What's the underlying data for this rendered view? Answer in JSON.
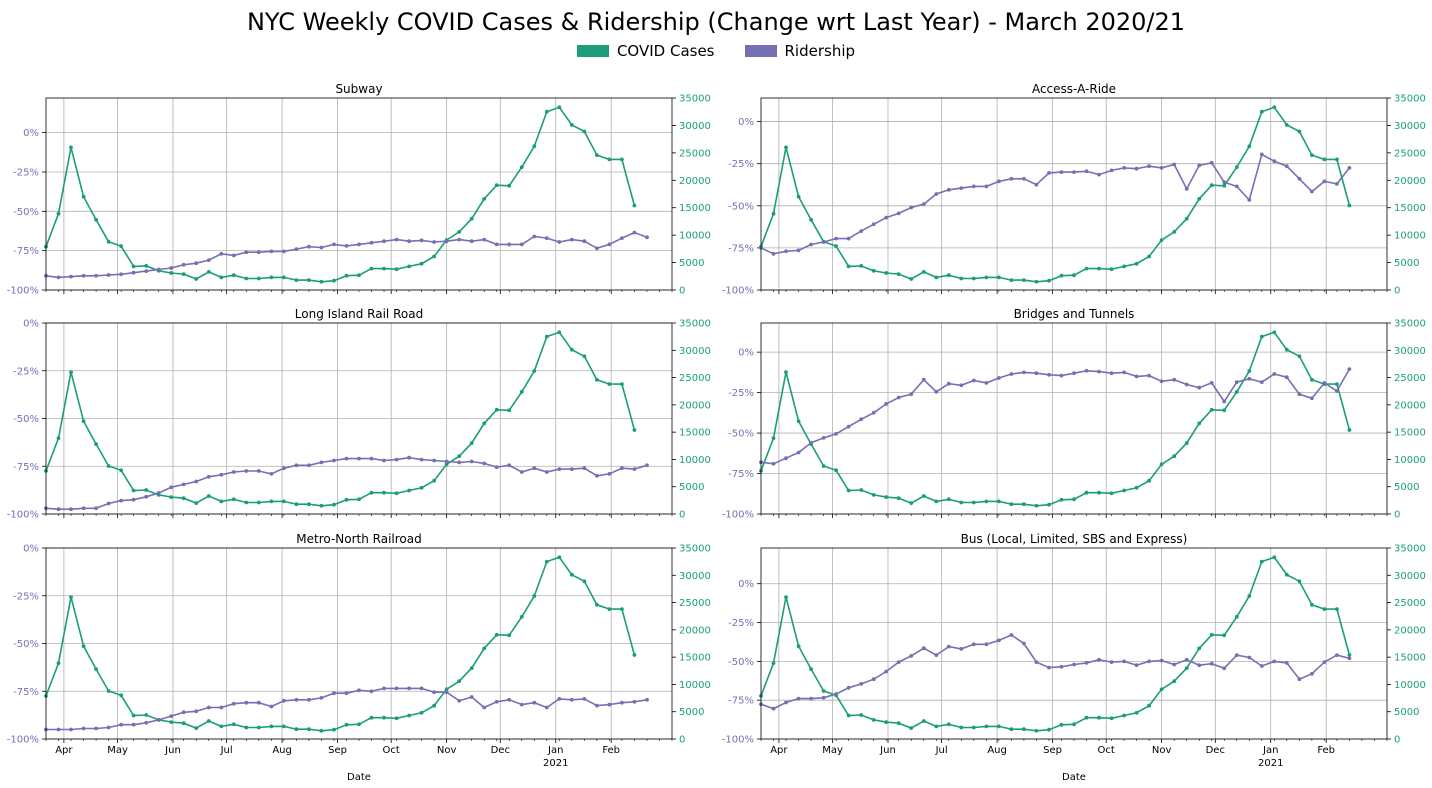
{
  "title": "NYC Weekly COVID Cases & Ridership (Change wrt Last Year) - March 2020/21",
  "legend": [
    {
      "label": "COVID Cases",
      "color": "#1b9e77"
    },
    {
      "label": "Ridership",
      "color": "#7570b3"
    }
  ],
  "colors": {
    "cases": "#1b9e77",
    "ridership": "#7570b3",
    "grid": "#b0b0b0"
  },
  "x_labels": {
    "months": [
      "Apr",
      "May",
      "Jun",
      "Jul",
      "Aug",
      "Sep",
      "Oct",
      "Nov",
      "Dec",
      "Jan",
      "Feb"
    ],
    "year": "2021",
    "xlabel": "Date"
  },
  "chart_data": [
    {
      "type": "line",
      "title": "Subway",
      "x_start": "2020-03-22",
      "x_step_days": 7,
      "x_range": [
        "2020-03-22",
        "2021-03-07"
      ],
      "y_left": {
        "ylim": [
          -100,
          22
        ],
        "ticks": [
          0,
          -25,
          -50,
          -75,
          -100
        ],
        "tick_labels": [
          "0%",
          "-25%",
          "-50%",
          "-75%",
          "-100%"
        ]
      },
      "y_right": {
        "ylim": [
          0,
          35000
        ],
        "ticks": [
          0,
          5000,
          10000,
          15000,
          20000,
          25000,
          30000,
          35000
        ]
      },
      "series": [
        {
          "name": "COVID Cases",
          "axis": "right",
          "values": [
            7900,
            13900,
            26000,
            17000,
            12800,
            8800,
            8000,
            4300,
            4400,
            3500,
            3100,
            2900,
            2000,
            3300,
            2300,
            2700,
            2100,
            2100,
            2300,
            2300,
            1800,
            1800,
            1500,
            1700,
            2600,
            2700,
            3900,
            3900,
            3800,
            4300,
            4800,
            6100,
            9100,
            10600,
            13000,
            16600,
            19100,
            19000,
            22400,
            26200,
            32500,
            33300,
            30100,
            28900,
            24600,
            23800,
            23800,
            15400
          ]
        },
        {
          "name": "Ridership",
          "axis": "left",
          "values": [
            -91,
            -92,
            -91.5,
            -91,
            -91,
            -90.5,
            -90,
            -89,
            -88,
            -87,
            -86,
            -84,
            -83,
            -81,
            -77,
            -78,
            -76,
            -76,
            -75.5,
            -75.5,
            -74,
            -72.5,
            -73,
            -71,
            -72,
            -71,
            -70,
            -69,
            -68,
            -69,
            -68.5,
            -69.5,
            -69,
            -68,
            -69,
            -68,
            -71,
            -71,
            -71,
            -66,
            -67,
            -69.5,
            -68,
            -69,
            -73.5,
            -71,
            -67,
            -63.5,
            -66.5
          ]
        }
      ]
    },
    {
      "type": "line",
      "title": "Access-A-Ride",
      "x_start": "2020-03-22",
      "x_step_days": 7,
      "x_range": [
        "2020-03-22",
        "2021-03-07"
      ],
      "y_left": {
        "ylim": [
          -100,
          14
        ],
        "ticks": [
          0,
          -25,
          -50,
          -75,
          -100
        ],
        "tick_labels": [
          "0%",
          "-25%",
          "-50%",
          "-75%",
          "-100%"
        ]
      },
      "y_right": {
        "ylim": [
          0,
          35000
        ],
        "ticks": [
          0,
          5000,
          10000,
          15000,
          20000,
          25000,
          30000,
          35000
        ]
      },
      "series": [
        {
          "name": "COVID Cases",
          "axis": "right",
          "values": [
            7900,
            13900,
            26000,
            17000,
            12800,
            8800,
            8000,
            4300,
            4400,
            3500,
            3100,
            2900,
            2000,
            3300,
            2300,
            2700,
            2100,
            2100,
            2300,
            2300,
            1800,
            1800,
            1500,
            1700,
            2600,
            2700,
            3900,
            3900,
            3800,
            4300,
            4800,
            6100,
            9100,
            10600,
            13000,
            16600,
            19100,
            19000,
            22400,
            26200,
            32500,
            33300,
            30100,
            28900,
            24600,
            23800,
            23800,
            15400
          ]
        },
        {
          "name": "Ridership",
          "axis": "left",
          "values": [
            -75,
            -78.5,
            -77,
            -76.5,
            -73,
            -71.5,
            -69.5,
            -69.5,
            -65,
            -61,
            -57,
            -54.5,
            -51,
            -49,
            -43,
            -40.5,
            -39.5,
            -38.5,
            -38.5,
            -35.5,
            -34,
            -34,
            -37.5,
            -30.5,
            -30,
            -30,
            -29.5,
            -31.5,
            -29,
            -27.5,
            -28,
            -26.5,
            -27.5,
            -25.5,
            -40,
            -26,
            -24.5,
            -36,
            -38.5,
            -46.5,
            -19.5,
            -23.5,
            -26.5,
            -34,
            -41.5,
            -35.5,
            -37,
            -27.5
          ]
        }
      ]
    },
    {
      "type": "line",
      "title": "Long Island Rail Road",
      "x_start": "2020-03-22",
      "x_step_days": 7,
      "x_range": [
        "2020-03-22",
        "2021-03-07"
      ],
      "y_left": {
        "ylim": [
          -100,
          0
        ],
        "ticks": [
          0,
          -25,
          -50,
          -75,
          -100
        ],
        "tick_labels": [
          "0%",
          "-25%",
          "-50%",
          "-75%",
          "-100%"
        ]
      },
      "y_right": {
        "ylim": [
          0,
          35000
        ],
        "ticks": [
          0,
          5000,
          10000,
          15000,
          20000,
          25000,
          30000,
          35000
        ]
      },
      "series": [
        {
          "name": "COVID Cases",
          "axis": "right",
          "values": [
            7900,
            13900,
            26000,
            17000,
            12800,
            8800,
            8000,
            4300,
            4400,
            3500,
            3100,
            2900,
            2000,
            3300,
            2300,
            2700,
            2100,
            2100,
            2300,
            2300,
            1800,
            1800,
            1500,
            1700,
            2600,
            2700,
            3900,
            3900,
            3800,
            4300,
            4800,
            6100,
            9100,
            10600,
            13000,
            16600,
            19100,
            19000,
            22400,
            26200,
            32500,
            33300,
            30100,
            28900,
            24600,
            23800,
            23800,
            15400
          ]
        },
        {
          "name": "Ridership",
          "axis": "left",
          "values": [
            -97,
            -97.5,
            -97.5,
            -97,
            -97,
            -94.5,
            -93,
            -92.5,
            -91,
            -89,
            -86,
            -84.5,
            -83,
            -80.5,
            -79.5,
            -78,
            -77.5,
            -77.5,
            -79,
            -76,
            -74.5,
            -74.5,
            -73,
            -72,
            -71,
            -71,
            -71,
            -72,
            -71.5,
            -70.5,
            -71.5,
            -72,
            -72.5,
            -73,
            -72.5,
            -73.5,
            -75.5,
            -74.5,
            -78,
            -76,
            -78,
            -76.5,
            -76.5,
            -76,
            -80,
            -79,
            -76,
            -76.5,
            -74.5
          ]
        }
      ]
    },
    {
      "type": "line",
      "title": "Bridges and Tunnels",
      "x_start": "2020-03-22",
      "x_step_days": 7,
      "x_range": [
        "2020-03-22",
        "2021-03-07"
      ],
      "y_left": {
        "ylim": [
          -100,
          18
        ],
        "ticks": [
          0,
          -25,
          -50,
          -75,
          -100
        ],
        "tick_labels": [
          "0%",
          "-25%",
          "-50%",
          "-75%",
          "-100%"
        ]
      },
      "y_right": {
        "ylim": [
          0,
          35000
        ],
        "ticks": [
          0,
          5000,
          10000,
          15000,
          20000,
          25000,
          30000,
          35000
        ]
      },
      "series": [
        {
          "name": "COVID Cases",
          "axis": "right",
          "values": [
            7900,
            13900,
            26000,
            17000,
            12800,
            8800,
            8000,
            4300,
            4400,
            3500,
            3100,
            2900,
            2000,
            3300,
            2300,
            2700,
            2100,
            2100,
            2300,
            2300,
            1800,
            1800,
            1500,
            1700,
            2600,
            2700,
            3900,
            3900,
            3800,
            4300,
            4800,
            6100,
            9100,
            10600,
            13000,
            16600,
            19100,
            19000,
            22400,
            26200,
            32500,
            33300,
            30100,
            28900,
            24600,
            23800,
            23800,
            15400
          ]
        },
        {
          "name": "Ridership",
          "axis": "left",
          "values": [
            -68,
            -69,
            -65.5,
            -62,
            -56,
            -53,
            -50.5,
            -46,
            -41.5,
            -37.5,
            -32,
            -28,
            -26,
            -17,
            -24.5,
            -19.5,
            -20.5,
            -17.5,
            -19,
            -16,
            -13.5,
            -12.5,
            -13,
            -14,
            -14.5,
            -13,
            -11.5,
            -12,
            -13,
            -12.5,
            -15,
            -14.5,
            -18,
            -17,
            -20,
            -22,
            -19,
            -30.5,
            -18.5,
            -16.5,
            -18.5,
            -13.5,
            -15.5,
            -26,
            -28.5,
            -19,
            -24,
            -10.5
          ]
        }
      ]
    },
    {
      "type": "line",
      "title": "Metro-North Railroad",
      "x_start": "2020-03-22",
      "x_step_days": 7,
      "x_range": [
        "2020-03-22",
        "2021-03-07"
      ],
      "y_left": {
        "ylim": [
          -100,
          0
        ],
        "ticks": [
          0,
          -25,
          -50,
          -75,
          -100
        ],
        "tick_labels": [
          "0%",
          "-25%",
          "-50%",
          "-75%",
          "-100%"
        ]
      },
      "y_right": {
        "ylim": [
          0,
          35000
        ],
        "ticks": [
          0,
          5000,
          10000,
          15000,
          20000,
          25000,
          30000,
          35000
        ]
      },
      "series": [
        {
          "name": "COVID Cases",
          "axis": "right",
          "values": [
            7900,
            13900,
            26000,
            17000,
            12800,
            8800,
            8000,
            4300,
            4400,
            3500,
            3100,
            2900,
            2000,
            3300,
            2300,
            2700,
            2100,
            2100,
            2300,
            2300,
            1800,
            1800,
            1500,
            1700,
            2600,
            2700,
            3900,
            3900,
            3800,
            4300,
            4800,
            6100,
            9100,
            10600,
            13000,
            16600,
            19100,
            19000,
            22400,
            26200,
            32500,
            33300,
            30100,
            28900,
            24600,
            23800,
            23800,
            15400
          ]
        },
        {
          "name": "Ridership",
          "axis": "left",
          "values": [
            -95,
            -95,
            -95,
            -94.5,
            -94.5,
            -94,
            -92.5,
            -92.5,
            -91.5,
            -90,
            -88,
            -86,
            -85.5,
            -83.5,
            -83.5,
            -81.5,
            -81,
            -81,
            -83,
            -80,
            -79.5,
            -79.5,
            -78.5,
            -76,
            -76,
            -74.5,
            -75,
            -73.5,
            -73.5,
            -73.5,
            -73.5,
            -75.5,
            -75.5,
            -80,
            -78,
            -83.5,
            -80.5,
            -79.5,
            -82,
            -81,
            -83.5,
            -79,
            -79.5,
            -79,
            -82.5,
            -82,
            -81,
            -80.5,
            -79.5
          ]
        }
      ]
    },
    {
      "type": "line",
      "title": "Bus (Local, Limited, SBS and Express)",
      "x_start": "2020-03-22",
      "x_step_days": 7,
      "x_range": [
        "2020-03-22",
        "2021-03-07"
      ],
      "y_left": {
        "ylim": [
          -100,
          23
        ],
        "ticks": [
          0,
          -25,
          -50,
          -75,
          -100
        ],
        "tick_labels": [
          "0%",
          "-25%",
          "-50%",
          "-75%",
          "-100%"
        ]
      },
      "y_right": {
        "ylim": [
          0,
          35000
        ],
        "ticks": [
          0,
          5000,
          10000,
          15000,
          20000,
          25000,
          30000,
          35000
        ]
      },
      "series": [
        {
          "name": "COVID Cases",
          "axis": "right",
          "values": [
            7900,
            13900,
            26000,
            17000,
            12800,
            8800,
            8000,
            4300,
            4400,
            3500,
            3100,
            2900,
            2000,
            3300,
            2300,
            2700,
            2100,
            2100,
            2300,
            2300,
            1800,
            1800,
            1500,
            1700,
            2600,
            2700,
            3900,
            3900,
            3800,
            4300,
            4800,
            6100,
            9100,
            10600,
            13000,
            16600,
            19100,
            19000,
            22400,
            26200,
            32500,
            33300,
            30100,
            28900,
            24600,
            23800,
            23800,
            15400
          ]
        },
        {
          "name": "Ridership",
          "axis": "left",
          "values": [
            -77.5,
            -80.5,
            -76.5,
            -74,
            -74,
            -73.5,
            -71,
            -67,
            -64.5,
            -61.5,
            -56.5,
            -50.5,
            -46.5,
            -41.5,
            -46,
            -40.5,
            -42,
            -39,
            -39,
            -36.5,
            -33,
            -38.5,
            -50.5,
            -54,
            -53.5,
            -52,
            -51,
            -49,
            -50.5,
            -50,
            -52.5,
            -50,
            -49.5,
            -52,
            -49,
            -52.5,
            -51.5,
            -54.5,
            -46,
            -47.5,
            -53,
            -50,
            -51,
            -61.5,
            -58,
            -50.5,
            -46,
            -48
          ]
        }
      ]
    }
  ]
}
